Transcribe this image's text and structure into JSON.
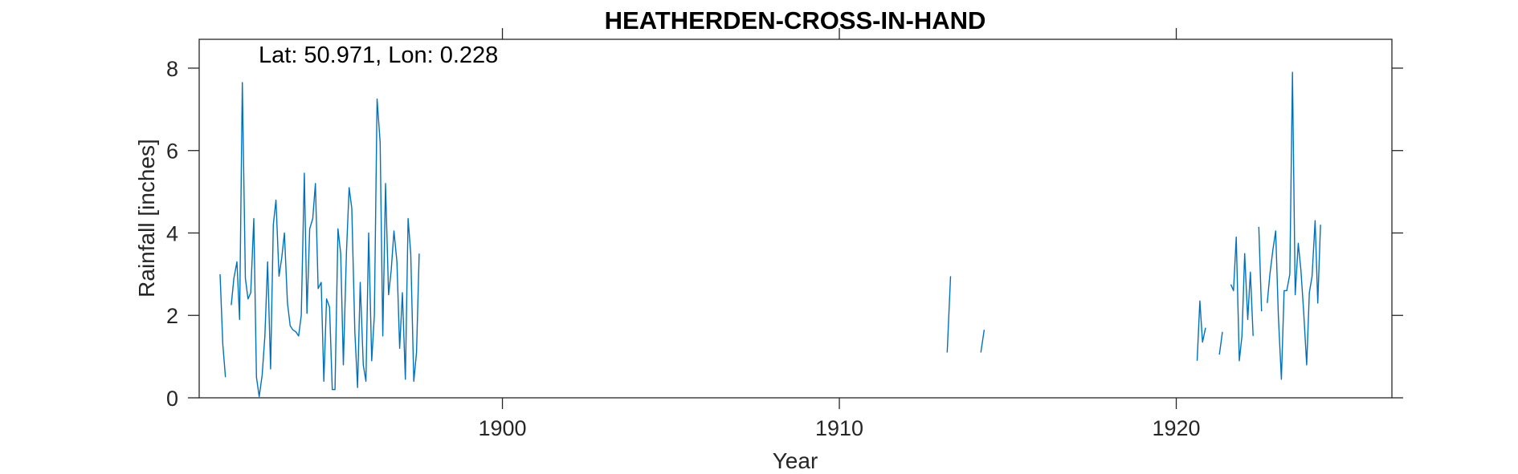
{
  "chart_data": {
    "type": "line",
    "title": "HEATHERDEN-CROSS-IN-HAND",
    "annotation": "Lat: 50.971, Lon: 0.228",
    "xlabel": "Year",
    "ylabel": "Rainfall [inches]",
    "xlim": [
      1891.0,
      1926.4
    ],
    "ylim": [
      0,
      8.7
    ],
    "xticks": [
      1900,
      1910,
      1920
    ],
    "yticks": [
      0,
      2,
      4,
      6,
      8
    ],
    "grid": false,
    "box": true,
    "line_color": "#0072BD",
    "series": [
      {
        "segments": [
          [
            [
              1891.62,
              3.0
            ],
            [
              1891.7,
              1.3
            ],
            [
              1891.78,
              0.5
            ]
          ],
          [
            [
              1891.95,
              2.25
            ],
            [
              1892.03,
              2.9
            ],
            [
              1892.12,
              3.3
            ],
            [
              1892.2,
              1.9
            ],
            [
              1892.28,
              7.65
            ],
            [
              1892.37,
              2.9
            ],
            [
              1892.45,
              2.4
            ],
            [
              1892.53,
              2.55
            ],
            [
              1892.62,
              4.35
            ],
            [
              1892.7,
              0.5
            ],
            [
              1892.78,
              0.03
            ],
            [
              1892.87,
              0.55
            ],
            [
              1892.95,
              1.5
            ],
            [
              1893.03,
              3.3
            ],
            [
              1893.12,
              0.7
            ],
            [
              1893.2,
              4.2
            ],
            [
              1893.28,
              4.8
            ],
            [
              1893.37,
              2.95
            ],
            [
              1893.45,
              3.4
            ],
            [
              1893.53,
              4.0
            ],
            [
              1893.62,
              2.3
            ],
            [
              1893.7,
              1.75
            ],
            [
              1893.78,
              1.65
            ],
            [
              1893.87,
              1.6
            ],
            [
              1893.95,
              1.5
            ],
            [
              1894.03,
              2.0
            ],
            [
              1894.12,
              5.45
            ],
            [
              1894.2,
              2.05
            ],
            [
              1894.28,
              4.1
            ],
            [
              1894.37,
              4.35
            ],
            [
              1894.45,
              5.2
            ],
            [
              1894.53,
              2.65
            ],
            [
              1894.62,
              2.8
            ],
            [
              1894.7,
              0.4
            ],
            [
              1894.78,
              2.4
            ],
            [
              1894.87,
              2.2
            ],
            [
              1894.95,
              0.2
            ],
            [
              1895.03,
              0.2
            ],
            [
              1895.12,
              4.1
            ],
            [
              1895.2,
              3.5
            ],
            [
              1895.28,
              0.8
            ],
            [
              1895.37,
              3.5
            ],
            [
              1895.45,
              5.1
            ],
            [
              1895.53,
              4.6
            ],
            [
              1895.62,
              1.6
            ],
            [
              1895.7,
              0.25
            ],
            [
              1895.78,
              2.8
            ],
            [
              1895.87,
              0.8
            ],
            [
              1895.95,
              0.4
            ],
            [
              1896.03,
              4.0
            ],
            [
              1896.12,
              0.9
            ],
            [
              1896.2,
              2.0
            ],
            [
              1896.28,
              7.25
            ],
            [
              1896.37,
              6.2
            ],
            [
              1896.45,
              1.5
            ],
            [
              1896.53,
              5.2
            ],
            [
              1896.62,
              2.5
            ],
            [
              1896.7,
              3.1
            ],
            [
              1896.78,
              4.05
            ],
            [
              1896.87,
              3.3
            ],
            [
              1896.95,
              1.2
            ],
            [
              1897.03,
              2.55
            ],
            [
              1897.12,
              0.45
            ],
            [
              1897.2,
              4.35
            ],
            [
              1897.28,
              3.5
            ],
            [
              1897.37,
              0.4
            ],
            [
              1897.45,
              1.1
            ],
            [
              1897.53,
              3.5
            ]
          ],
          [
            [
              1913.2,
              1.1
            ],
            [
              1913.3,
              2.95
            ]
          ],
          [
            [
              1914.2,
              1.1
            ],
            [
              1914.3,
              1.65
            ]
          ],
          [
            [
              1920.62,
              0.9
            ],
            [
              1920.7,
              2.35
            ],
            [
              1920.78,
              1.35
            ],
            [
              1920.87,
              1.7
            ]
          ],
          [
            [
              1921.28,
              1.05
            ],
            [
              1921.37,
              1.6
            ]
          ],
          [
            [
              1921.62,
              2.75
            ],
            [
              1921.7,
              2.6
            ],
            [
              1921.78,
              3.9
            ],
            [
              1921.87,
              0.9
            ],
            [
              1921.95,
              1.5
            ],
            [
              1922.03,
              3.5
            ],
            [
              1922.12,
              1.9
            ],
            [
              1922.2,
              3.05
            ],
            [
              1922.28,
              1.5
            ]
          ],
          [
            [
              1922.45,
              4.15
            ],
            [
              1922.53,
              2.1
            ]
          ],
          [
            [
              1922.7,
              2.3
            ],
            [
              1922.78,
              3.0
            ],
            [
              1922.87,
              3.6
            ],
            [
              1922.95,
              4.05
            ],
            [
              1923.03,
              2.0
            ],
            [
              1923.12,
              0.45
            ],
            [
              1923.2,
              2.6
            ],
            [
              1923.28,
              2.6
            ],
            [
              1923.37,
              3.0
            ],
            [
              1923.45,
              7.9
            ],
            [
              1923.53,
              2.5
            ],
            [
              1923.62,
              3.75
            ],
            [
              1923.7,
              3.1
            ],
            [
              1923.78,
              2.1
            ],
            [
              1923.87,
              0.8
            ],
            [
              1923.95,
              2.55
            ],
            [
              1924.03,
              2.95
            ],
            [
              1924.12,
              4.3
            ],
            [
              1924.2,
              2.3
            ],
            [
              1924.28,
              4.2
            ]
          ]
        ]
      }
    ]
  }
}
